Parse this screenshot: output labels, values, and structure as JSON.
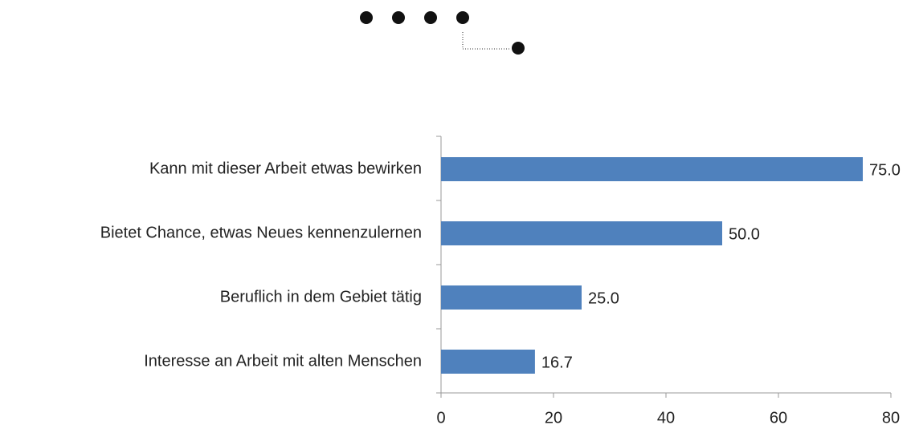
{
  "chart_data": {
    "type": "bar",
    "orientation": "horizontal",
    "categories": [
      "Kann mit dieser Arbeit etwas bewirken",
      "Bietet Chance, etwas Neues kennenzulernen",
      "Beruflich in dem Gebiet tätig",
      "Interesse an Arbeit mit alten Menschen"
    ],
    "values": [
      75,
      50,
      25,
      16.7
    ],
    "value_labels": [
      "75.0",
      "50.0",
      "25.0",
      "16.7"
    ],
    "color": "#4f81bd",
    "xlim": [
      0,
      80
    ],
    "xticks": [
      0,
      20,
      40,
      60,
      80
    ]
  }
}
